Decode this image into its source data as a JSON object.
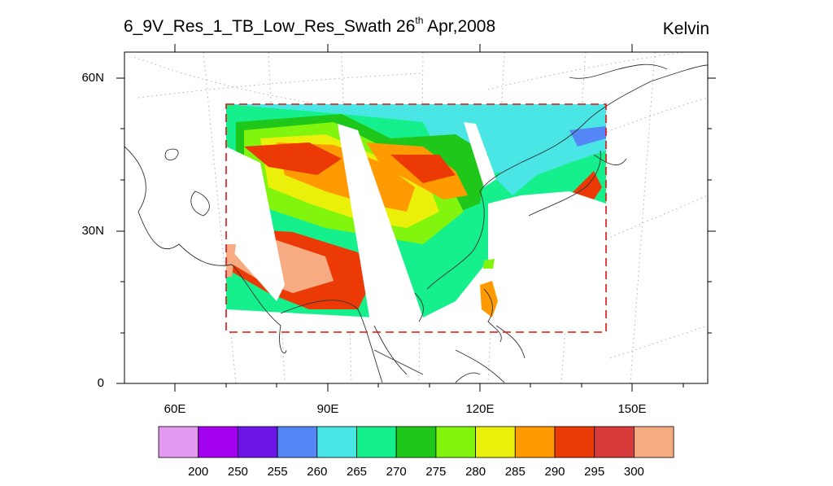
{
  "title": {
    "main": "6_9V_Res_1_TB_Low_Res_Swath 26",
    "sup": "th",
    "date": " Apr,2008"
  },
  "units": "Kelvin",
  "lat_labels": [
    "60N",
    "30N",
    "0"
  ],
  "lon_labels": [
    "60E",
    "90E",
    "120E",
    "150E"
  ],
  "colorbar": {
    "labels": [
      "200",
      "250",
      "255",
      "260",
      "265",
      "270",
      "275",
      "280",
      "285",
      "290",
      "295",
      "300"
    ],
    "colors": [
      "#e39af0",
      "#a300f0",
      "#6b16e6",
      "#5487f5",
      "#4ae6e6",
      "#16f08c",
      "#1fc71a",
      "#82f50f",
      "#eaf00a",
      "#ff9b00",
      "#eb3a05",
      "#d63a3a",
      "#f7ab82"
    ]
  },
  "map": {
    "region": {
      "lon_min": 70,
      "lon_max": 145,
      "lat_min": 10,
      "lat_max": 55
    },
    "axis": {
      "lon_min": 50,
      "lon_max": 165,
      "lat_min": 0,
      "lat_max": 65
    }
  }
}
